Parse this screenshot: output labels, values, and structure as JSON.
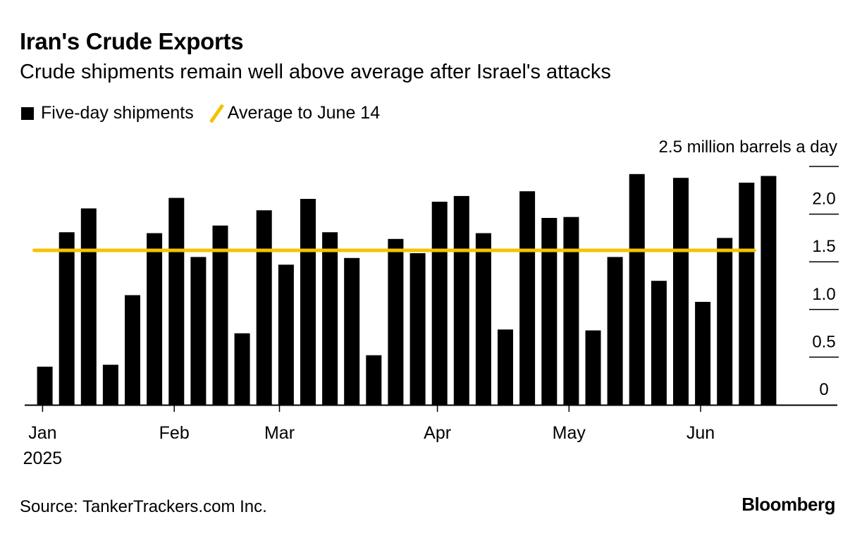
{
  "header": {
    "title": "Iran's Crude Exports",
    "subtitle": "Crude shipments remain well above average after Israel's attacks"
  },
  "legend": {
    "bars_label": "Five-day shipments",
    "line_label": "Average to June 14"
  },
  "footer": {
    "source": "Source: TankerTrackers.com Inc.",
    "brand": "Bloomberg"
  },
  "colors": {
    "bars": "#000000",
    "average_line": "#f5c200",
    "axis": "#000000"
  },
  "chart_data": {
    "type": "bar",
    "unit_label": "2.5 million barrels a day",
    "y_ticks": [
      "0",
      "0.5",
      "1.0",
      "1.5",
      "2.0"
    ],
    "y_tick_values": [
      0,
      0.5,
      1.0,
      1.5,
      2.0,
      2.5
    ],
    "ylim": [
      0,
      2.5
    ],
    "grid": false,
    "x_ticks": [
      {
        "label": "Jan",
        "sublabel": "2025",
        "index": 0.4
      },
      {
        "label": "Feb",
        "sublabel": "",
        "index": 6.4
      },
      {
        "label": "Mar",
        "sublabel": "",
        "index": 11.2
      },
      {
        "label": "Apr",
        "sublabel": "",
        "index": 18.4
      },
      {
        "label": "May",
        "sublabel": "",
        "index": 24.4
      },
      {
        "label": "Jun",
        "sublabel": "",
        "index": 30.4
      }
    ],
    "series": [
      {
        "name": "Five-day shipments",
        "values": [
          0.4,
          1.81,
          2.06,
          0.42,
          1.15,
          1.8,
          2.17,
          1.55,
          1.88,
          0.75,
          2.04,
          1.47,
          2.16,
          1.81,
          1.54,
          0.52,
          1.74,
          1.59,
          2.13,
          2.19,
          1.8,
          0.79,
          2.24,
          1.96,
          1.97,
          0.78,
          1.55,
          2.42,
          1.3,
          2.38,
          1.08,
          1.75,
          2.33,
          2.4
        ]
      }
    ],
    "average_line": {
      "name": "Average to June 14",
      "value": 1.62,
      "start_index": 0,
      "end_index": 32
    }
  }
}
